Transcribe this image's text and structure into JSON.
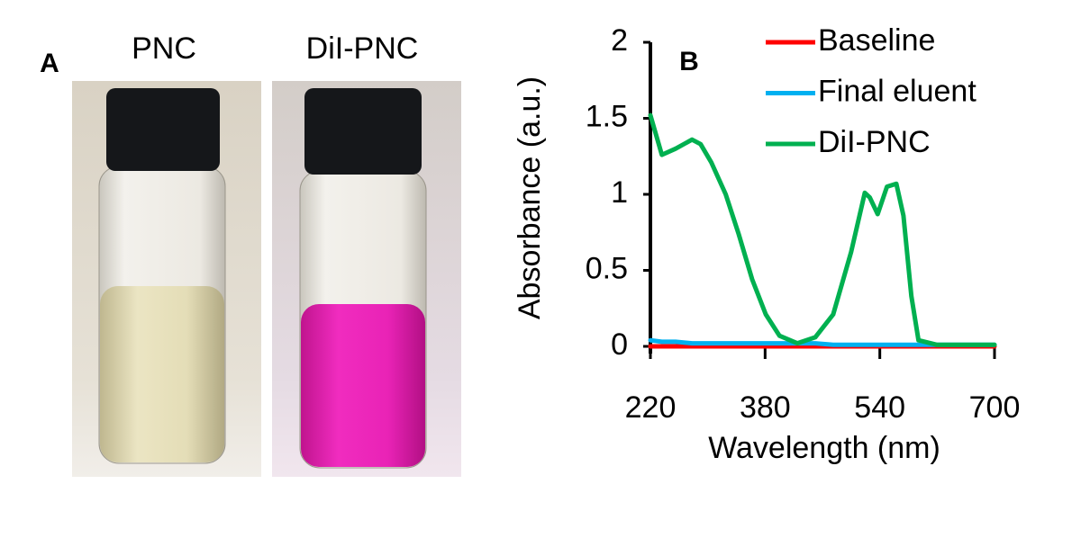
{
  "panel_a": {
    "label": "A",
    "vials": [
      "PNC",
      "DiI-PNC"
    ]
  },
  "chart_data": {
    "type": "line",
    "panel_label": "B",
    "xlabel": "Wavelength (nm)",
    "ylabel": "Absorbance (a.u.)",
    "x": [
      220,
      236,
      255,
      278,
      290,
      305,
      325,
      343,
      362,
      381,
      400,
      425,
      450,
      475,
      500,
      519,
      526,
      537,
      550,
      563,
      573,
      584,
      594,
      620,
      700
    ],
    "series": [
      {
        "name": "Baseline",
        "color": "#ff0000",
        "values": [
          0,
          0,
          0,
          0,
          0,
          0,
          0,
          0,
          0,
          0,
          0,
          0,
          0,
          0,
          0,
          0,
          0,
          0,
          0,
          0,
          0,
          0,
          0,
          0,
          0
        ]
      },
      {
        "name": "Final eluent",
        "color": "#00b0f0",
        "values": [
          0.04,
          0.03,
          0.03,
          0.02,
          0.02,
          0.02,
          0.02,
          0.02,
          0.02,
          0.02,
          0.02,
          0.02,
          0.02,
          0.01,
          0.01,
          0.01,
          0.01,
          0.01,
          0.01,
          0.01,
          0.01,
          0.01,
          0.01,
          0.01,
          0.01
        ]
      },
      {
        "name": "DiI-PNC",
        "color": "#00b050",
        "values": [
          1.52,
          1.26,
          1.3,
          1.36,
          1.33,
          1.21,
          1.0,
          0.74,
          0.44,
          0.21,
          0.07,
          0.02,
          0.06,
          0.21,
          0.62,
          1.01,
          0.98,
          0.87,
          1.05,
          1.07,
          0.86,
          0.33,
          0.04,
          0.01,
          0.01
        ]
      }
    ],
    "xlim": [
      220,
      700
    ],
    "xticks": [
      220,
      380,
      540,
      700
    ],
    "ylim": [
      0,
      2
    ],
    "yticks": [
      0,
      0.5,
      1,
      1.5,
      2
    ],
    "legend": "upper right"
  }
}
